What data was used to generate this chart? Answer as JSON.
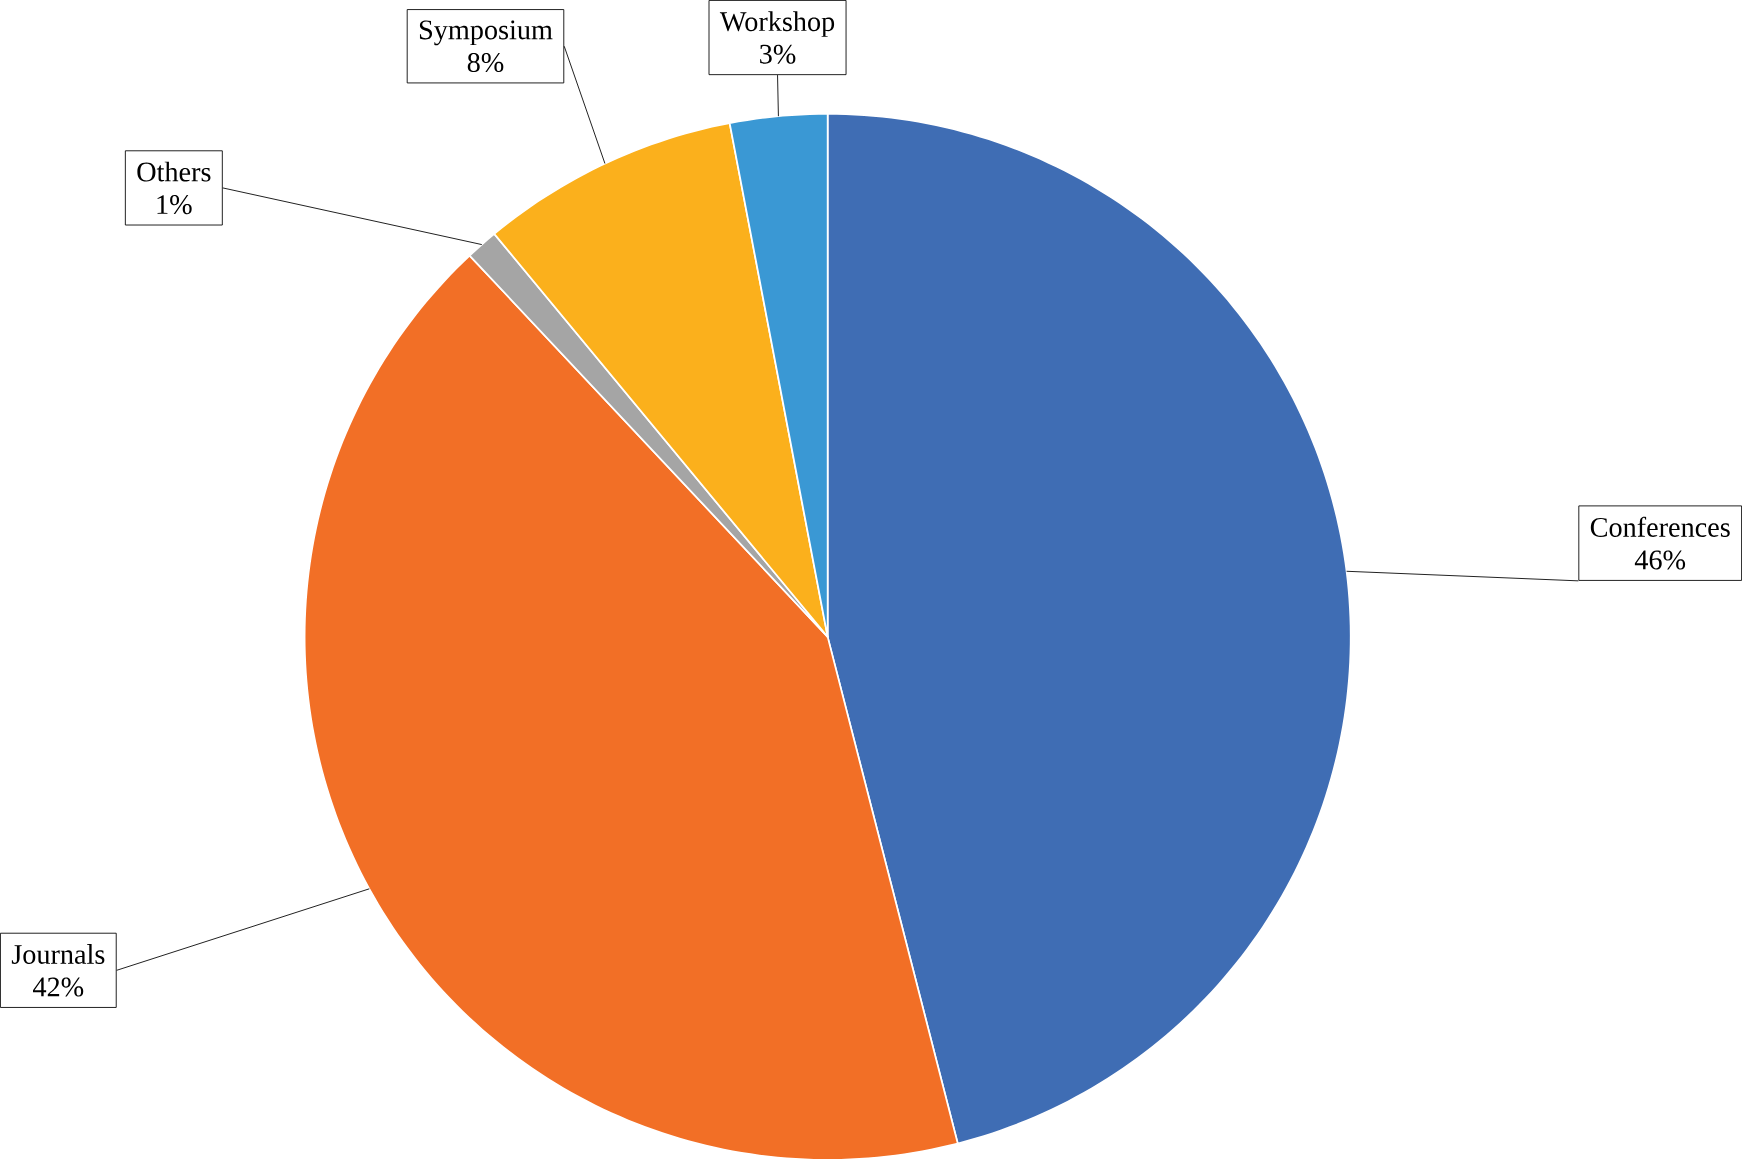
{
  "chart_data": {
    "type": "pie",
    "categories": [
      "Conferences",
      "Journals",
      "Others",
      "Symposium",
      "Workshop"
    ],
    "values": [
      46,
      42,
      1,
      8,
      3
    ],
    "colors": [
      "#3f6db4",
      "#f26f26",
      "#a5a5a5",
      "#fbb01c",
      "#3a98d4"
    ],
    "value_labels": [
      "46%",
      "42%",
      "1%",
      "8%",
      "3%"
    ]
  }
}
